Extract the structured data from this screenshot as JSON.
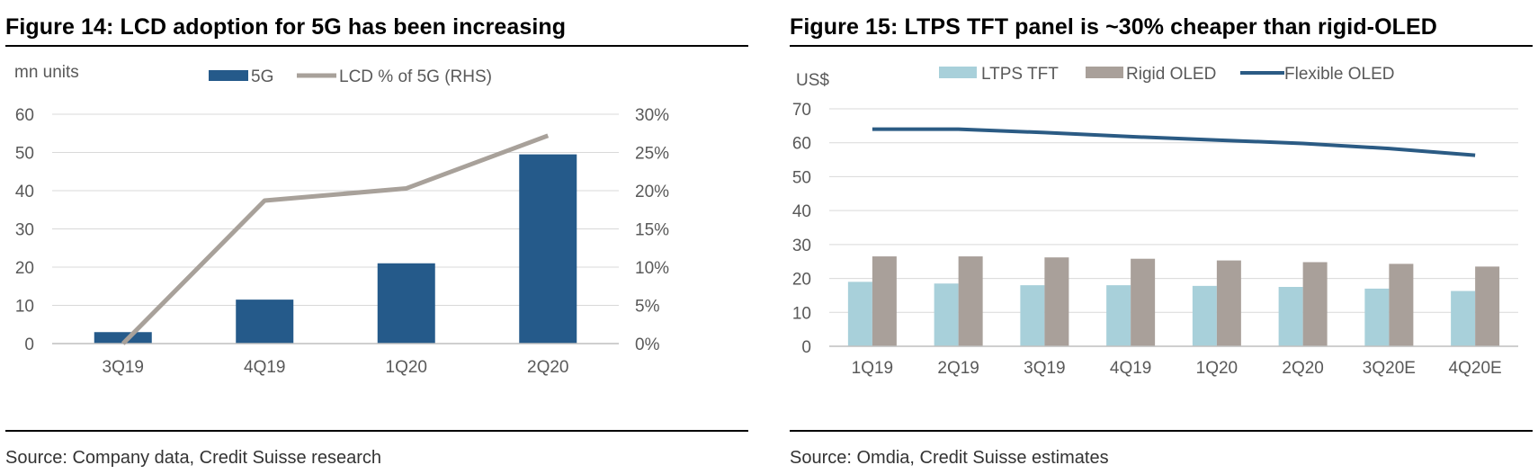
{
  "colors": {
    "navy": "#255A8A",
    "grey_line": "#A8A19A",
    "light_blue": "#A8D0DA",
    "taupe": "#A9A09A",
    "flex_line": "#2B5B84",
    "gridline": "#D9D9D9"
  },
  "figure14": {
    "title": "Figure 14: LCD adoption for 5G has been increasing",
    "source": "Source: Company data, Credit Suisse research",
    "chart_data": {
      "type": "bar",
      "categories": [
        "3Q19",
        "4Q19",
        "1Q20",
        "2Q20"
      ],
      "series": [
        {
          "name": "5G",
          "type": "bar",
          "axis": "left",
          "values": [
            3,
            11.5,
            21,
            49.5
          ]
        },
        {
          "name": "LCD % of 5G (RHS)",
          "type": "line",
          "axis": "right",
          "values": [
            0,
            0.187,
            0.203,
            0.272
          ]
        }
      ],
      "ylabel": "mn units",
      "ylim": [
        0,
        60
      ],
      "yticks": [
        "0",
        "10",
        "20",
        "30",
        "40",
        "50",
        "60"
      ],
      "y2lim": [
        0,
        0.3
      ],
      "y2ticks": [
        "0%",
        "5%",
        "10%",
        "15%",
        "20%",
        "25%",
        "30%"
      ],
      "grid": true,
      "legend": "top-center"
    }
  },
  "figure15": {
    "title": "Figure 15: LTPS TFT panel is ~30% cheaper than rigid-OLED",
    "source": "Source: Omdia, Credit Suisse estimates",
    "chart_data": {
      "type": "bar",
      "categories": [
        "1Q19",
        "2Q19",
        "3Q19",
        "4Q19",
        "1Q20",
        "2Q20",
        "3Q20E",
        "4Q20E"
      ],
      "series": [
        {
          "name": "LTPS TFT",
          "type": "bar",
          "values": [
            19,
            18.5,
            18,
            18,
            17.8,
            17.5,
            17,
            16.3
          ]
        },
        {
          "name": "Rigid OLED",
          "type": "bar",
          "values": [
            26.5,
            26.5,
            26.2,
            25.8,
            25.3,
            24.8,
            24.3,
            23.5
          ]
        },
        {
          "name": "Flexible OLED",
          "type": "line",
          "values": [
            64,
            64,
            63,
            61.8,
            60.8,
            59.8,
            58.3,
            56.3
          ]
        }
      ],
      "ylabel": "US$",
      "ylim": [
        0,
        70
      ],
      "yticks": [
        "0",
        "10",
        "20",
        "30",
        "40",
        "50",
        "60",
        "70"
      ],
      "grid": true,
      "legend": "top-center"
    }
  }
}
